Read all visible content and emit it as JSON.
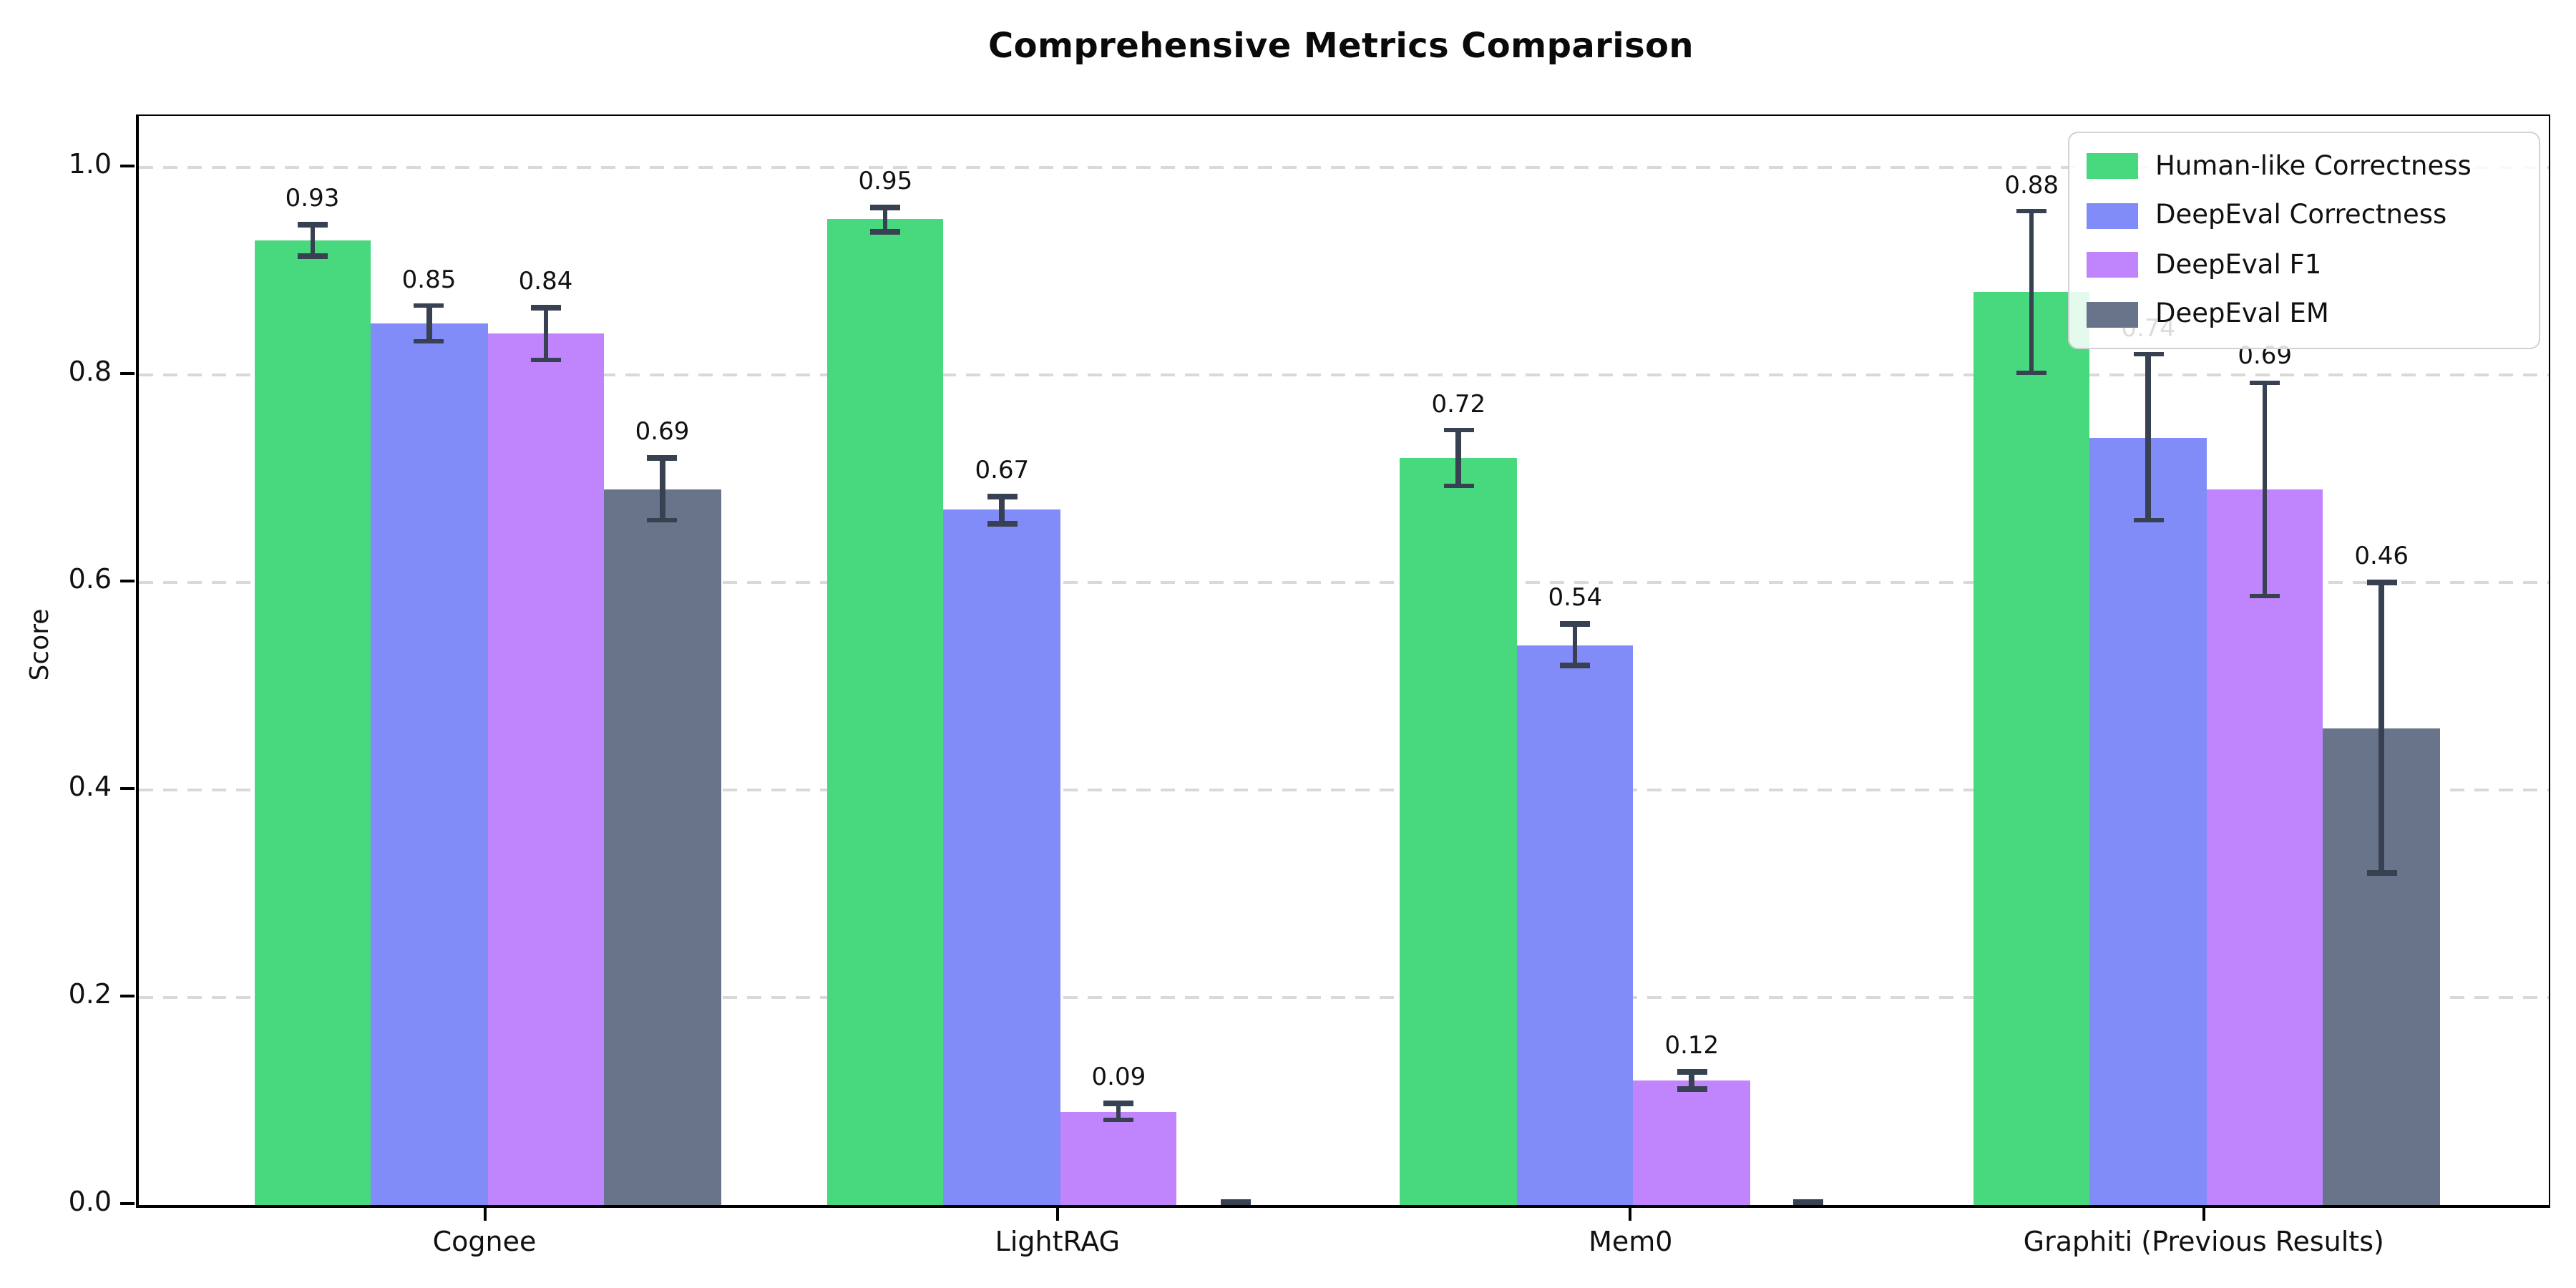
{
  "chart_data": {
    "type": "bar",
    "title": "Comprehensive Metrics Comparison",
    "ylabel": "Score",
    "categories": [
      "Cognee",
      "LightRAG",
      "Mem0",
      "Graphiti (Previous Results)"
    ],
    "series": [
      {
        "name": "Human-like Correctness",
        "color": "#48d97f",
        "values": [
          0.93,
          0.95,
          0.72,
          0.88
        ],
        "errors": [
          0.015,
          0.012,
          0.027,
          0.078
        ],
        "labels": [
          "0.93",
          "0.95",
          "0.72",
          "0.88"
        ]
      },
      {
        "name": "DeepEval Correctness",
        "color": "#818cf8",
        "values": [
          0.85,
          0.67,
          0.54,
          0.74
        ],
        "errors": [
          0.017,
          0.013,
          0.02,
          0.08
        ],
        "labels": [
          "0.85",
          "0.67",
          "0.54",
          "0.74"
        ]
      },
      {
        "name": "DeepEval F1",
        "color": "#c084fc",
        "values": [
          0.84,
          0.09,
          0.12,
          0.69
        ],
        "errors": [
          0.025,
          0.008,
          0.008,
          0.103
        ],
        "labels": [
          "0.84",
          "0.09",
          "0.12",
          "0.69"
        ]
      },
      {
        "name": "DeepEval EM",
        "color": "#68748a",
        "values": [
          0.69,
          0.0,
          0.0,
          0.46
        ],
        "errors": [
          0.03,
          0.003,
          0.003,
          0.14
        ],
        "labels": [
          "0.69",
          "",
          "",
          "0.46"
        ]
      }
    ],
    "ylim": [
      0,
      1.05
    ],
    "yticks": [
      0.0,
      0.2,
      0.4,
      0.6,
      0.8,
      1.0
    ],
    "ytick_labels": [
      "0.0",
      "0.2",
      "0.4",
      "0.6",
      "0.8",
      "1.0"
    ],
    "grid": "horizontal-dashed",
    "legend_position": "upper-right",
    "colors": {
      "error_bar": "#374151",
      "gridline": "#d9d9d9",
      "spine": "#000000",
      "background": "#ffffff",
      "text": "#111111"
    }
  }
}
